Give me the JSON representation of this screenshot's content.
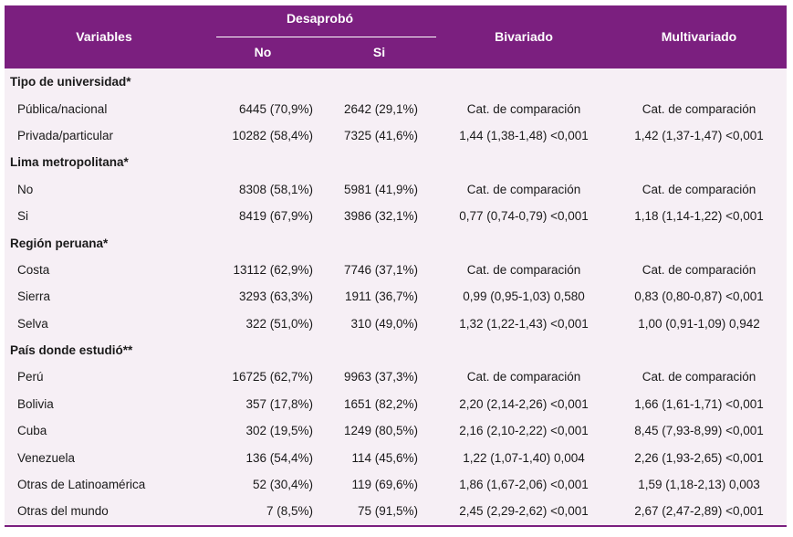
{
  "header": {
    "variables": "Variables",
    "desaprobo": "Desaprobó",
    "no": "No",
    "si": "Si",
    "bivariado": "Bivariado",
    "multivariado": "Multivariado"
  },
  "colors": {
    "header_bg": "#7b1f7f",
    "body_bg": "#f6eff5"
  },
  "rows": [
    {
      "type": "section",
      "label": "Tipo de universidad*"
    },
    {
      "type": "item",
      "label": "Pública/nacional",
      "no": "6445 (70,9%)",
      "si": "2642 (29,1%)",
      "biv": "Cat. de comparación",
      "mult": "Cat. de comparación"
    },
    {
      "type": "item",
      "label": "Privada/particular",
      "no": "10282 (58,4%)",
      "si": "7325 (41,6%)",
      "biv": "1,44 (1,38-1,48) <0,001",
      "mult": "1,42 (1,37-1,47) <0,001"
    },
    {
      "type": "section",
      "label": "Lima metropolitana*"
    },
    {
      "type": "item",
      "label": "No",
      "no": "8308 (58,1%)",
      "si": "5981 (41,9%)",
      "biv": "Cat. de comparación",
      "mult": "Cat. de comparación"
    },
    {
      "type": "item",
      "label": "Si",
      "no": "8419 (67,9%)",
      "si": "3986 (32,1%)",
      "biv": "0,77 (0,74-0,79) <0,001",
      "mult": "1,18 (1,14-1,22) <0,001"
    },
    {
      "type": "section",
      "label": "Región peruana*"
    },
    {
      "type": "item",
      "label": "Costa",
      "no": "13112 (62,9%)",
      "si": "7746 (37,1%)",
      "biv": "Cat. de comparación",
      "mult": "Cat. de comparación"
    },
    {
      "type": "item",
      "label": "Sierra",
      "no": "3293 (63,3%)",
      "si": "1911 (36,7%)",
      "biv": "0,99 (0,95-1,03) 0,580",
      "mult": "0,83 (0,80-0,87) <0,001"
    },
    {
      "type": "item",
      "label": "Selva",
      "no": "322 (51,0%)",
      "si": "310 (49,0%)",
      "biv": "1,32 (1,22-1,43) <0,001",
      "mult": "1,00 (0,91-1,09) 0,942"
    },
    {
      "type": "section",
      "label": "País donde estudió**"
    },
    {
      "type": "item",
      "label": "Perú",
      "no": "16725 (62,7%)",
      "si": "9963 (37,3%)",
      "biv": "Cat. de comparación",
      "mult": "Cat. de comparación"
    },
    {
      "type": "item",
      "label": "Bolivia",
      "no": "357 (17,8%)",
      "si": "1651 (82,2%)",
      "biv": "2,20 (2,14-2,26) <0,001",
      "mult": "1,66 (1,61-1,71) <0,001"
    },
    {
      "type": "item",
      "label": "Cuba",
      "no": "302 (19,5%)",
      "si": "1249 (80,5%)",
      "biv": "2,16 (2,10-2,22) <0,001",
      "mult": "8,45 (7,93-8,99) <0,001"
    },
    {
      "type": "item",
      "label": "Venezuela",
      "no": "136 (54,4%)",
      "si": "114 (45,6%)",
      "biv": "1,22 (1,07-1,40) 0,004",
      "mult": "2,26 (1,93-2,65) <0,001"
    },
    {
      "type": "item",
      "label": "Otras de Latinoamérica",
      "no": "52 (30,4%)",
      "si": "119 (69,6%)",
      "biv": "1,86 (1,67-2,06) <0,001",
      "mult": "1,59 (1,18-2,13) 0,003"
    },
    {
      "type": "item",
      "label": "Otras del mundo",
      "no": "7 (8,5%)",
      "si": "75 (91,5%)",
      "biv": "2,45 (2,29-2,62) <0,001",
      "mult": "2,67 (2,47-2,89) <0,001"
    }
  ]
}
